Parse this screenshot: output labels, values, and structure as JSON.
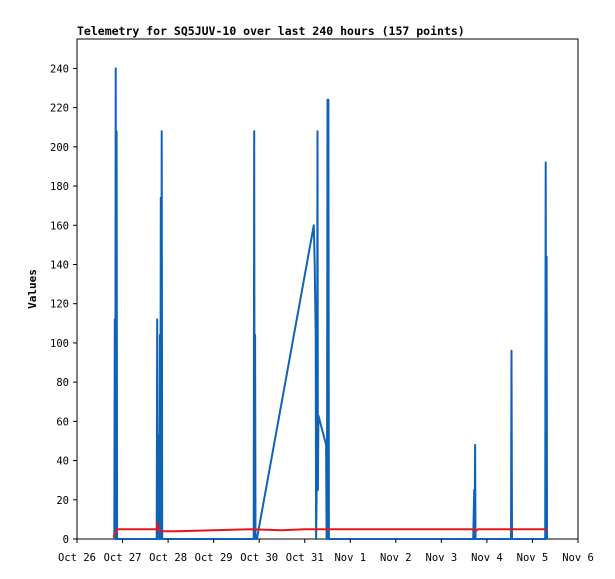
{
  "chart_data": {
    "type": "line",
    "title": "Telemetry for SQ5JUV-10 over last 240 hours (157 points)",
    "xlabel": "",
    "ylabel": "Values",
    "x_ticks": [
      "Oct 26",
      "Oct 27",
      "Oct 28",
      "Oct 29",
      "Oct 30",
      "Oct 31",
      "Nov 1",
      "Nov 2",
      "Nov 3",
      "Nov 4",
      "Nov 5",
      "Nov 6"
    ],
    "xlim_days": [
      0,
      11
    ],
    "ylim": [
      0,
      255
    ],
    "y_ticks": [
      0,
      20,
      40,
      60,
      80,
      100,
      120,
      140,
      160,
      180,
      200,
      220,
      240
    ],
    "grid": false,
    "series": [
      {
        "color": "#0e63b8",
        "points": [
          [
            0.82,
            0
          ],
          [
            0.83,
            112
          ],
          [
            0.84,
            0
          ],
          [
            0.85,
            240
          ],
          [
            0.86,
            0
          ],
          [
            0.87,
            208
          ],
          [
            0.88,
            0
          ],
          [
            0.9,
            0
          ],
          [
            1.75,
            0
          ],
          [
            1.76,
            112
          ],
          [
            1.77,
            0
          ],
          [
            1.78,
            53
          ],
          [
            1.79,
            0
          ],
          [
            1.8,
            35
          ],
          [
            1.81,
            0
          ],
          [
            1.82,
            104
          ],
          [
            1.83,
            0
          ],
          [
            1.84,
            174
          ],
          [
            1.85,
            0
          ],
          [
            1.86,
            208
          ],
          [
            1.87,
            0
          ],
          [
            3.88,
            0
          ],
          [
            3.89,
            208
          ],
          [
            3.9,
            0
          ],
          [
            3.91,
            104
          ],
          [
            3.92,
            0
          ],
          [
            3.95,
            0
          ],
          [
            5.2,
            160
          ],
          [
            5.22,
            140
          ],
          [
            5.24,
            104
          ],
          [
            5.25,
            0
          ],
          [
            5.27,
            40
          ],
          [
            5.28,
            208
          ],
          [
            5.29,
            25
          ],
          [
            5.3,
            63
          ],
          [
            5.47,
            48
          ],
          [
            5.48,
            0
          ],
          [
            5.49,
            25
          ],
          [
            5.5,
            224
          ],
          [
            5.51,
            0
          ],
          [
            5.52,
            224
          ],
          [
            5.53,
            0
          ],
          [
            8.7,
            0
          ],
          [
            8.72,
            25
          ],
          [
            8.73,
            0
          ],
          [
            8.74,
            48
          ],
          [
            8.75,
            0
          ],
          [
            9.53,
            0
          ],
          [
            9.54,
            96
          ],
          [
            9.55,
            0
          ],
          [
            10.28,
            0
          ],
          [
            10.29,
            192
          ],
          [
            10.3,
            0
          ],
          [
            10.31,
            144
          ],
          [
            10.32,
            0
          ]
        ]
      },
      {
        "color": "#e8161b",
        "points": [
          [
            0.8,
            1
          ],
          [
            0.88,
            5
          ],
          [
            1.75,
            5
          ],
          [
            1.76,
            8
          ],
          [
            1.8,
            4
          ],
          [
            2.2,
            4
          ],
          [
            3.0,
            4.5
          ],
          [
            3.8,
            5
          ],
          [
            4.5,
            4.5
          ],
          [
            5.0,
            5
          ],
          [
            5.5,
            5
          ],
          [
            6.5,
            5
          ],
          [
            8.7,
            5
          ],
          [
            8.75,
            4
          ],
          [
            8.8,
            5
          ],
          [
            10.32,
            5
          ]
        ]
      }
    ]
  }
}
